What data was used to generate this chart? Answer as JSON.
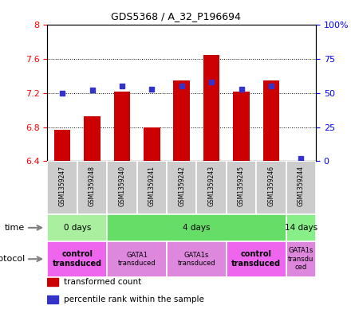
{
  "title": "GDS5368 / A_32_P196694",
  "samples": [
    "GSM1359247",
    "GSM1359248",
    "GSM1359240",
    "GSM1359241",
    "GSM1359242",
    "GSM1359243",
    "GSM1359245",
    "GSM1359246",
    "GSM1359244"
  ],
  "transformed_count": [
    6.77,
    6.93,
    7.22,
    6.8,
    7.35,
    7.65,
    7.22,
    7.35,
    6.4
  ],
  "percentile_rank": [
    50,
    52,
    55,
    53,
    55,
    58,
    53,
    55,
    2
  ],
  "bar_bottom": 6.4,
  "ylim_left": [
    6.4,
    8.0
  ],
  "ylim_right": [
    0,
    100
  ],
  "yticks_left": [
    6.4,
    6.8,
    7.2,
    7.6,
    8.0
  ],
  "ytick_labels_left": [
    "6.4",
    "6.8",
    "7.2",
    "7.6",
    "8"
  ],
  "yticks_right": [
    0,
    25,
    50,
    75,
    100
  ],
  "ytick_labels_right": [
    "0",
    "25",
    "50",
    "75",
    "100%"
  ],
  "bar_color": "#cc0000",
  "dot_color": "#3333cc",
  "sample_bg_color": "#cccccc",
  "time_groups": [
    {
      "label": "0 days",
      "start": 0,
      "end": 2,
      "color": "#aaeea0"
    },
    {
      "label": "4 days",
      "start": 2,
      "end": 8,
      "color": "#66dd66"
    },
    {
      "label": "14 days",
      "start": 8,
      "end": 9,
      "color": "#88ee88"
    }
  ],
  "protocol_groups": [
    {
      "label": "control\ntransduced",
      "start": 0,
      "end": 2,
      "color": "#ee66ee",
      "bold": true
    },
    {
      "label": "GATA1\ntransduced",
      "start": 2,
      "end": 4,
      "color": "#dd88dd",
      "bold": false
    },
    {
      "label": "GATA1s\ntransduced",
      "start": 4,
      "end": 6,
      "color": "#dd88dd",
      "bold": false
    },
    {
      "label": "control\ntransduced",
      "start": 6,
      "end": 8,
      "color": "#ee66ee",
      "bold": true
    },
    {
      "label": "GATA1s\ntransdu\nced",
      "start": 8,
      "end": 9,
      "color": "#dd88dd",
      "bold": false
    }
  ],
  "legend_items": [
    {
      "color": "#cc0000",
      "label": "transformed count"
    },
    {
      "color": "#3333cc",
      "label": "percentile rank within the sample"
    }
  ],
  "bar_width": 0.55
}
